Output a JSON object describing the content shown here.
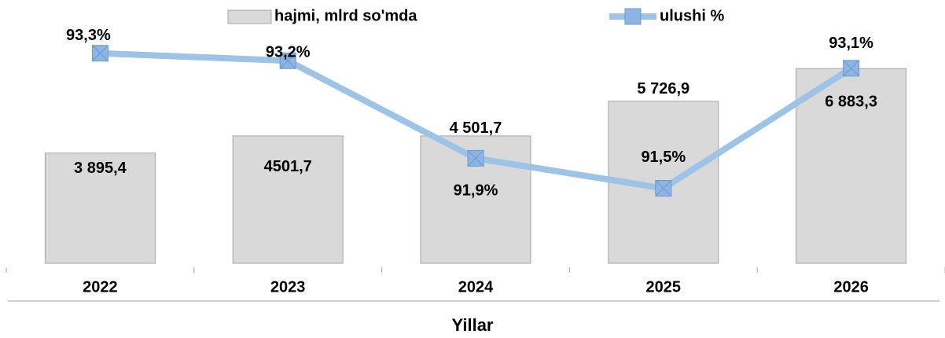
{
  "chart_data": {
    "type": "bar",
    "categories": [
      "2022",
      "2023",
      "2024",
      "2025",
      "2026"
    ],
    "x_label": "Yillar",
    "ylim": [
      0,
      8750
    ],
    "y2lim": [
      90.5,
      93.8
    ],
    "series": [
      {
        "name": "hajmi, mlrd so'mda",
        "type": "bar",
        "color": "#d9d9d9",
        "values": [
          3895.4,
          4501.7,
          4501.7,
          5726.9,
          6883.3
        ],
        "value_labels": [
          "3 895,4",
          "4501,7",
          "4 501,7",
          "5 726,9",
          "6 883,3"
        ]
      },
      {
        "name": "ulushi %",
        "type": "line",
        "axis": "y2",
        "color": "#9dc3e6",
        "values": [
          93.3,
          93.2,
          91.9,
          91.5,
          93.1
        ],
        "value_labels": [
          "93,3%",
          "93,2%",
          "91,9%",
          "91,5%",
          "93,1%"
        ]
      }
    ]
  }
}
